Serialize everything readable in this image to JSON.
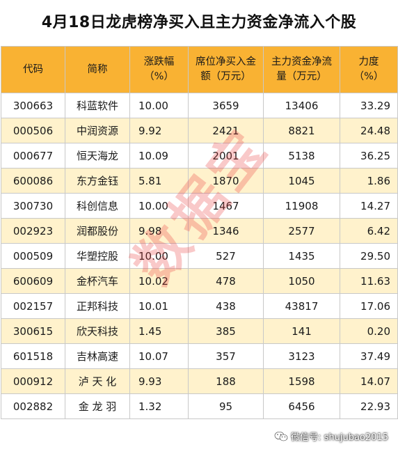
{
  "title": "4月18日龙虎榜净买入且主力资金净流入个股",
  "table": {
    "headers": [
      "代码",
      "简称",
      "涨跌幅（%）",
      "席位净买入金额（万元）",
      "主力资金净流量（万元）",
      "力度（%）"
    ],
    "header_lines": [
      [
        "代码"
      ],
      [
        "简称"
      ],
      [
        "涨跌幅",
        "（%）"
      ],
      [
        "席位净买入金",
        "额（万元）"
      ],
      [
        "主力资金净流",
        "量（万元）"
      ],
      [
        "力度",
        "（%）"
      ]
    ],
    "rows": [
      [
        "300663",
        "科蓝软件",
        "10.00",
        "3659",
        "13406",
        "33.29"
      ],
      [
        "000506",
        "中润资源",
        "9.92",
        "2421",
        "8821",
        "24.48"
      ],
      [
        "000677",
        "恒天海龙",
        "10.09",
        "2001",
        "5138",
        "36.25"
      ],
      [
        "600086",
        "东方金钰",
        "5.81",
        "1870",
        "1045",
        "1.86"
      ],
      [
        "300730",
        "科创信息",
        "10.00",
        "1467",
        "11908",
        "14.27"
      ],
      [
        "002923",
        "润都股份",
        "9.98",
        "1346",
        "2577",
        "6.42"
      ],
      [
        "000509",
        "华塑控股",
        "10.00",
        "527",
        "1435",
        "29.50"
      ],
      [
        "600609",
        "金杯汽车",
        "10.02",
        "478",
        "1050",
        "11.63"
      ],
      [
        "002157",
        "正邦科技",
        "10.01",
        "438",
        "43817",
        "17.06"
      ],
      [
        "300615",
        "欣天科技",
        "1.45",
        "385",
        "141",
        "0.20"
      ],
      [
        "601518",
        "吉林高速",
        "10.07",
        "357",
        "3123",
        "37.49"
      ],
      [
        "000912",
        "泸 天 化",
        "9.93",
        "188",
        "1598",
        "14.07"
      ],
      [
        "002882",
        "金 龙 羽",
        "1.32",
        "95",
        "6456",
        "22.93"
      ]
    ]
  },
  "watermark": "数据宝",
  "wechat_label": "微信号: shujubao2015",
  "colors": {
    "header_bg": "#f9b233",
    "stripe_bg": "#fff2cc",
    "watermark": "#eb3c3c"
  }
}
